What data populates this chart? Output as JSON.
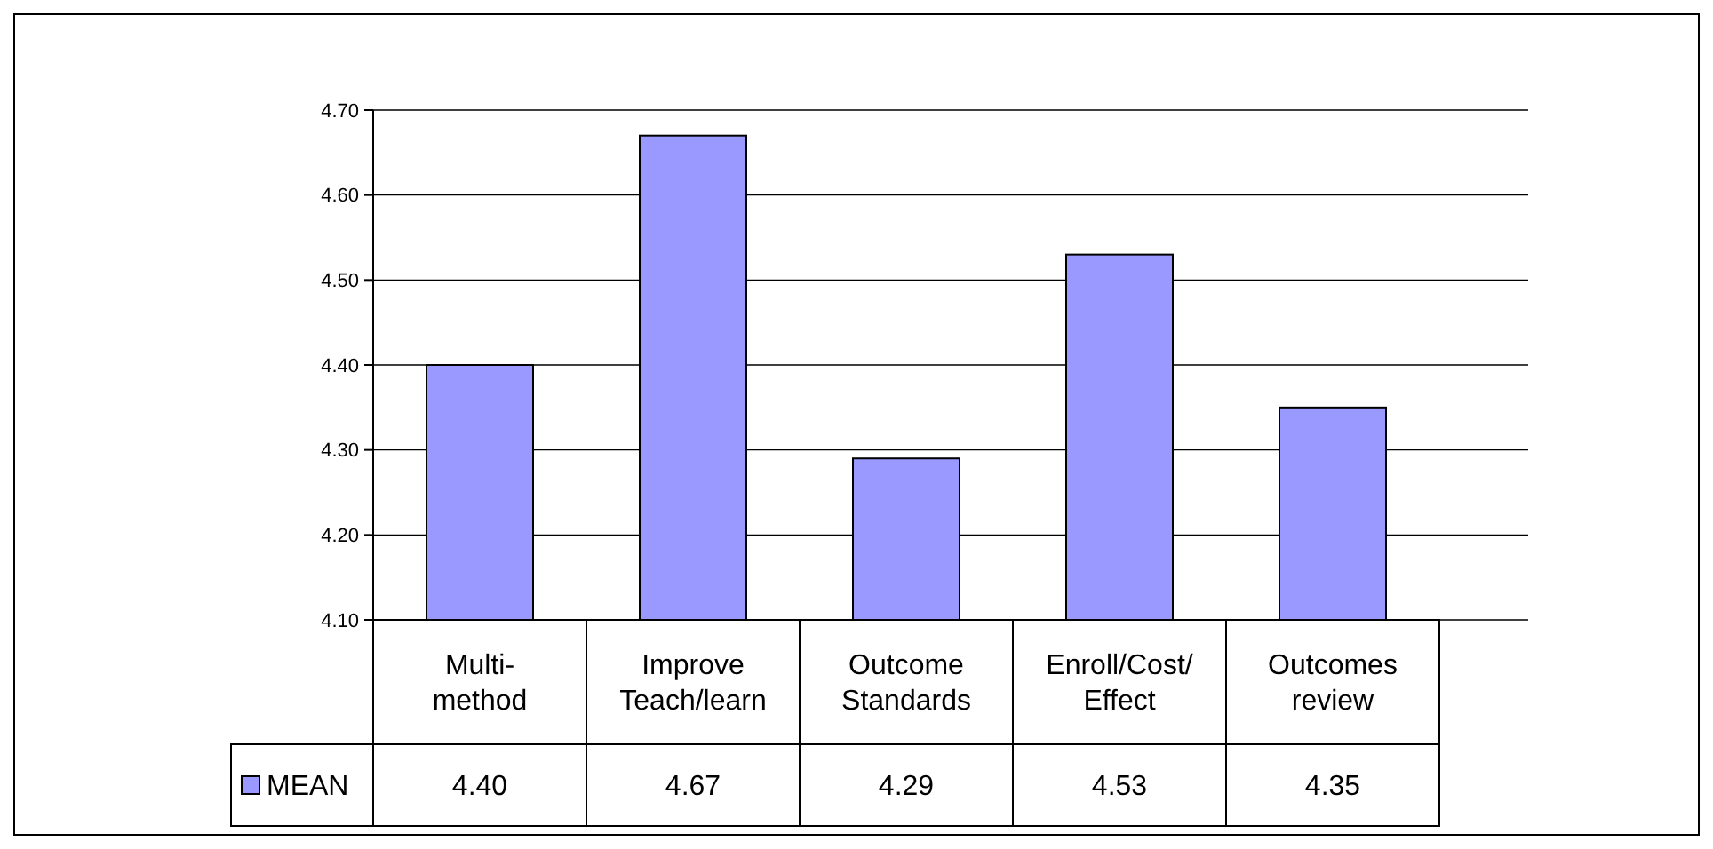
{
  "chart_data": {
    "type": "bar",
    "categories": [
      "Multi-\nmethod",
      "Improve\nTeach/learn",
      "Outcome\nStandards",
      "Enroll/Cost/\nEffect",
      "Outcomes\nreview"
    ],
    "series": [
      {
        "name": "MEAN",
        "color": "#9999ff",
        "values": [
          4.4,
          4.67,
          4.29,
          4.53,
          4.35
        ],
        "value_labels": [
          "4.40",
          "4.67",
          "4.29",
          "4.53",
          "4.35"
        ]
      }
    ],
    "ylim": [
      4.1,
      4.7
    ],
    "yticks": [
      {
        "value": 4.1,
        "label": "4.10"
      },
      {
        "value": 4.2,
        "label": "4.20"
      },
      {
        "value": 4.3,
        "label": "4.30"
      },
      {
        "value": 4.4,
        "label": "4.40"
      },
      {
        "value": 4.5,
        "label": "4.50"
      },
      {
        "value": 4.6,
        "label": "4.60"
      },
      {
        "value": 4.7,
        "label": "4.70"
      }
    ],
    "grid": "y",
    "legend": "bottom left"
  }
}
